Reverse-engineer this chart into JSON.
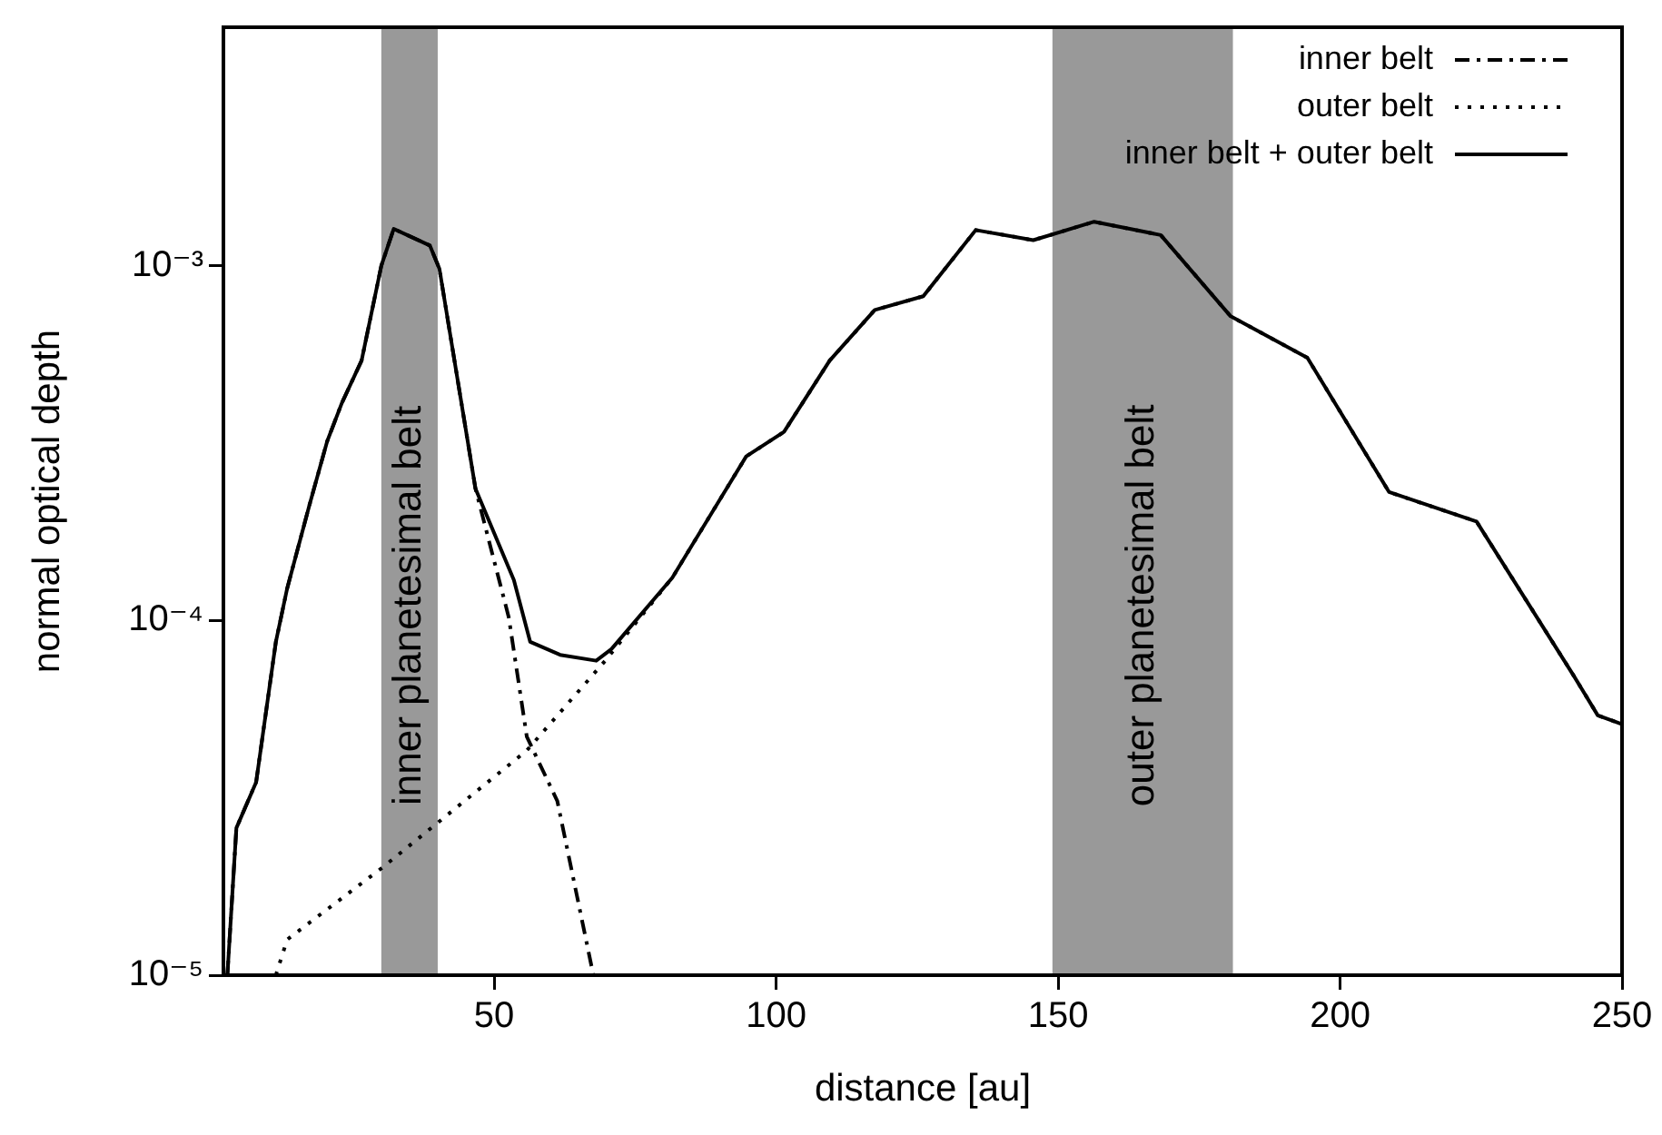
{
  "chart_data": {
    "type": "line",
    "xlabel": "distance [au]",
    "ylabel": "normal optical depth",
    "log": "y",
    "legend": "top right",
    "grid": false,
    "marker": "none",
    "xlim": [
      2,
      250
    ],
    "xticks": [
      50,
      100,
      150,
      200,
      250
    ],
    "ylim": [
      1e-05,
      0.0047
    ],
    "yticks": [
      {
        "value": 1e-05,
        "label": "10⁻⁵"
      },
      {
        "value": 0.0001,
        "label": "10⁻⁴"
      },
      {
        "value": 0.001,
        "label": "10⁻³"
      }
    ],
    "bands": [
      {
        "axis": "x",
        "from": 30,
        "to": 40,
        "label": "inner planetesimal belt",
        "color": "#999999"
      },
      {
        "axis": "x",
        "from": 149,
        "to": 181,
        "label": "outer planetesimal belt",
        "color": "#999999"
      }
    ],
    "series": [
      {
        "name": "inner belt",
        "color": "#000000",
        "line_style": "dashdot",
        "x": [
          2.7,
          4.3,
          7.8,
          11.3,
          13.3,
          17.2,
          20.4,
          23,
          26.5,
          30,
          32.2,
          38.6,
          40.3,
          46.7,
          52.6,
          55.8,
          61.2,
          67.6
        ],
        "values": [
          1e-05,
          2.6e-05,
          3.5e-05,
          8.7e-05,
          0.000123,
          0.00021,
          0.00032,
          0.00041,
          0.00054,
          0.001,
          0.00127,
          0.00114,
          0.00098,
          0.000235,
          0.000102,
          4.7e-05,
          3.1e-05,
          1e-05
        ]
      },
      {
        "name": "outer belt",
        "color": "#000000",
        "line_style": "dotted",
        "x": [
          11.3,
          13.3,
          30,
          55.8,
          69.7,
          81.6,
          84.8,
          94.7,
          101.4,
          109.5,
          117.5,
          126.1,
          135.4,
          145.6,
          156.4,
          168.2,
          180.6,
          194.2,
          208.7,
          224.2,
          241.4,
          245.7,
          250
        ],
        "values": [
          1e-05,
          1.26e-05,
          2e-05,
          4.3e-05,
          7.7e-05,
          0.000132,
          0.00016,
          0.00029,
          0.00034,
          0.00054,
          0.00075,
          0.00082,
          0.00126,
          0.00118,
          0.00133,
          0.00122,
          0.00072,
          0.00055,
          0.00023,
          0.00019,
          7e-05,
          5.4e-05,
          5.1e-05
        ]
      },
      {
        "name": "inner belt + outer belt",
        "color": "#000000",
        "line_style": "solid",
        "x": [
          2.7,
          4.3,
          7.8,
          11.3,
          13.3,
          17.2,
          20.4,
          23,
          26.5,
          30,
          32.2,
          38.6,
          40.3,
          46.7,
          53.5,
          56.4,
          61.7,
          68.1,
          70.8,
          81.6,
          84.8,
          94.7,
          101.4,
          109.5,
          117.5,
          126.1,
          135.4,
          145.6,
          156.4,
          168.2,
          180.6,
          194.2,
          208.7,
          224.2,
          241.4,
          245.7,
          250
        ],
        "values": [
          1e-05,
          2.6e-05,
          3.5e-05,
          8.7e-05,
          0.000123,
          0.00021,
          0.00032,
          0.00041,
          0.00054,
          0.001,
          0.00127,
          0.00114,
          0.00098,
          0.000235,
          0.00013,
          8.7e-05,
          8e-05,
          7.7e-05,
          8.3e-05,
          0.000132,
          0.00016,
          0.00029,
          0.00034,
          0.00054,
          0.00075,
          0.00082,
          0.00126,
          0.00118,
          0.00133,
          0.00122,
          0.00072,
          0.00055,
          0.00023,
          0.00019,
          7e-05,
          5.4e-05,
          5.1e-05
        ]
      }
    ]
  }
}
